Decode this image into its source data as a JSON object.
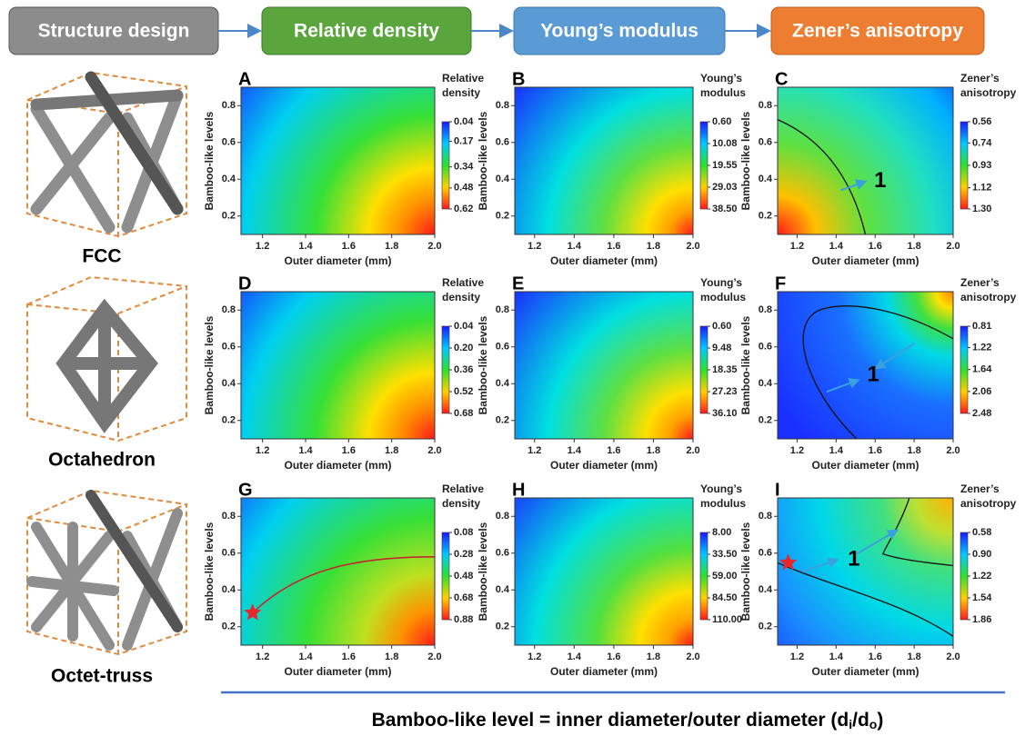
{
  "header": {
    "steps": [
      "Structure design",
      "Relative density",
      "Young’s modulus",
      "Zener’s anisotropy"
    ]
  },
  "structures": [
    "FCC",
    "Octahedron",
    "Octet-truss"
  ],
  "footer": {
    "text": "Bamboo-like level = inner diameter/outer diameter (d",
    "sub1": "i",
    "mid": "/d",
    "sub2": "o",
    "end": ")"
  },
  "chart_data": [
    {
      "type": "heatmap",
      "label": "A",
      "xlabel": "Outer diameter (mm)",
      "ylabel": "Bamboo-like levels",
      "xlim": [
        1.1,
        2.0
      ],
      "xticks": [
        1.2,
        1.4,
        1.6,
        1.8,
        {
          "value": 2,
          "label": "2.0"
        }
      ],
      "ylim": [
        0.1,
        0.9
      ],
      "yticks": [
        0.2,
        0.4,
        0.6,
        0.8
      ],
      "colorbar": {
        "title": [
          "Relative",
          "density"
        ],
        "clim": [
          0.04,
          0.62
        ],
        "ticks": [
          0.04,
          0.17,
          0.34,
          0.48,
          0.62
        ]
      }
    },
    {
      "type": "heatmap",
      "label": "B",
      "xlabel": "Outer diameter (mm)",
      "ylabel": "Bamboo-like levels",
      "xlim": [
        1.1,
        2.0
      ],
      "xticks": [
        1.2,
        1.4,
        1.6,
        1.8,
        {
          "value": 2,
          "label": "2.0"
        }
      ],
      "ylim": [
        0.1,
        0.9
      ],
      "yticks": [
        0.2,
        0.4,
        0.6,
        0.8
      ],
      "colorbar": {
        "title": [
          "Young’s",
          "modulus"
        ],
        "clim": [
          0.6,
          38.5
        ],
        "ticks": [
          {
            "value": 0.6,
            "label": "0.60"
          },
          10.08,
          19.55,
          29.03,
          {
            "value": 38.5,
            "label": "38.50"
          }
        ]
      }
    },
    {
      "type": "heatmap",
      "label": "C",
      "xlabel": "Outer diameter (mm)",
      "ylabel": "Bamboo-like levels",
      "xlim": [
        1.1,
        2.0
      ],
      "xticks": [
        1.2,
        1.4,
        1.6,
        1.8,
        {
          "value": 2,
          "label": "2.0"
        }
      ],
      "ylim": [
        0.1,
        0.9
      ],
      "yticks": [
        0.2,
        0.4,
        0.6,
        0.8
      ],
      "colorbar": {
        "title": [
          "Zener’s",
          "anisotropy"
        ],
        "clim": [
          0.56,
          1.3
        ],
        "ticks": [
          0.56,
          0.74,
          0.93,
          1.12,
          {
            "value": 1.3,
            "label": "1.30"
          }
        ]
      },
      "contour_label": 1
    },
    {
      "type": "heatmap",
      "label": "D",
      "xlabel": "Outer diameter (mm)",
      "ylabel": "Bamboo-like levels",
      "xlim": [
        1.1,
        2.0
      ],
      "xticks": [
        1.2,
        1.4,
        1.6,
        1.8,
        {
          "value": 2,
          "label": "2.0"
        }
      ],
      "ylim": [
        0.1,
        0.9
      ],
      "yticks": [
        0.2,
        0.4,
        0.6,
        0.8
      ],
      "colorbar": {
        "title": [
          "Relative",
          "density"
        ],
        "clim": [
          0.04,
          0.68
        ],
        "ticks": [
          0.04,
          {
            "value": 0.2,
            "label": "0.20"
          },
          0.36,
          0.52,
          0.68
        ]
      }
    },
    {
      "type": "heatmap",
      "label": "E",
      "xlabel": "Outer diameter (mm)",
      "ylabel": "Bamboo-like levels",
      "xlim": [
        1.1,
        2.0
      ],
      "xticks": [
        1.2,
        1.4,
        1.6,
        1.8,
        {
          "value": 2,
          "label": "2.0"
        }
      ],
      "ylim": [
        0.1,
        0.9
      ],
      "yticks": [
        0.2,
        0.4,
        0.6,
        0.8
      ],
      "colorbar": {
        "title": [
          "Young’s",
          "modulus"
        ],
        "clim": [
          0.6,
          36.1
        ],
        "ticks": [
          {
            "value": 0.6,
            "label": "0.60"
          },
          9.48,
          18.35,
          27.23,
          {
            "value": 36.1,
            "label": "36.10"
          }
        ]
      }
    },
    {
      "type": "heatmap",
      "label": "F",
      "xlabel": "Outer diameter (mm)",
      "ylabel": "Bamboo-like levels",
      "xlim": [
        1.1,
        2.0
      ],
      "xticks": [
        1.2,
        1.4,
        1.6,
        1.8,
        {
          "value": 2,
          "label": "2.0"
        }
      ],
      "ylim": [
        0.1,
        0.9
      ],
      "yticks": [
        0.2,
        0.4,
        0.6,
        0.8
      ],
      "colorbar": {
        "title": [
          "Zener’s",
          "anisotropy"
        ],
        "clim": [
          0.81,
          2.48
        ],
        "ticks": [
          0.81,
          1.22,
          1.64,
          2.06,
          2.48
        ]
      },
      "contour_label": 1
    },
    {
      "type": "heatmap",
      "label": "G",
      "xlabel": "Outer diameter (mm)",
      "ylabel": "Bamboo-like levels",
      "xlim": [
        1.1,
        2.0
      ],
      "xticks": [
        1.2,
        1.4,
        1.6,
        1.8,
        {
          "value": 2,
          "label": "2.0"
        }
      ],
      "ylim": [
        0.1,
        0.9
      ],
      "yticks": [
        0.2,
        0.4,
        0.6,
        0.8
      ],
      "colorbar": {
        "title": [
          "Relative",
          "density"
        ],
        "clim": [
          0.08,
          0.88
        ],
        "ticks": [
          0.08,
          0.28,
          0.48,
          0.68,
          0.88
        ]
      }
    },
    {
      "type": "heatmap",
      "label": "H",
      "xlabel": "Outer diameter (mm)",
      "ylabel": "Bamboo-like levels",
      "xlim": [
        1.1,
        2.0
      ],
      "xticks": [
        1.2,
        1.4,
        1.6,
        1.8,
        {
          "value": 2,
          "label": "2.0"
        }
      ],
      "ylim": [
        0.1,
        0.9
      ],
      "yticks": [
        0.2,
        0.4,
        0.6,
        0.8
      ],
      "colorbar": {
        "title": [
          "Young’s",
          "modulus"
        ],
        "clim": [
          8,
          110
        ],
        "ticks": [
          {
            "value": 8,
            "label": "8.00"
          },
          {
            "value": 33.5,
            "label": "33.50"
          },
          {
            "value": 59,
            "label": "59.00"
          },
          {
            "value": 84.5,
            "label": "84.50"
          },
          {
            "value": 110,
            "label": "110.00"
          }
        ]
      }
    },
    {
      "type": "heatmap",
      "label": "I",
      "xlabel": "Outer diameter (mm)",
      "ylabel": "Bamboo-like levels",
      "xlim": [
        1.1,
        2.0
      ],
      "xticks": [
        1.2,
        1.4,
        1.6,
        1.8,
        {
          "value": 2,
          "label": "2.0"
        }
      ],
      "ylim": [
        0.1,
        0.9
      ],
      "yticks": [
        0.2,
        0.4,
        0.6,
        0.8
      ],
      "colorbar": {
        "title": [
          "Zener’s",
          "anisotropy"
        ],
        "clim": [
          0.58,
          1.86
        ],
        "ticks": [
          0.58,
          {
            "value": 0.9,
            "label": "0.90"
          },
          1.22,
          1.54,
          1.86
        ]
      },
      "contour_label": 1
    }
  ]
}
